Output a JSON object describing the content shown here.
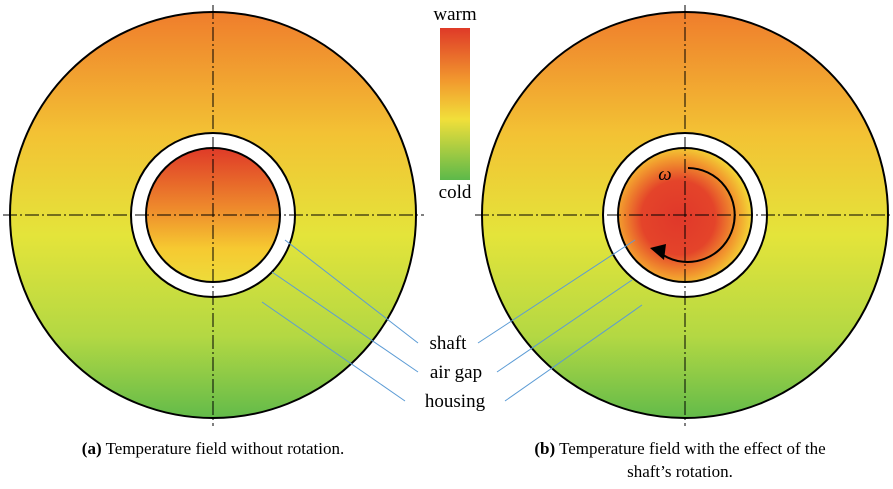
{
  "legend": {
    "top": "warm",
    "bottom": "cold"
  },
  "labels": [
    "shaft",
    "air gap",
    "housing"
  ],
  "symbol": "ω",
  "captions": [
    {
      "tag": "(a)",
      "lines": [
        "Temperature field without rotation."
      ]
    },
    {
      "tag": "(b)",
      "lines": [
        "Temperature field with the effect of the",
        "shaft’s rotation."
      ]
    }
  ]
}
